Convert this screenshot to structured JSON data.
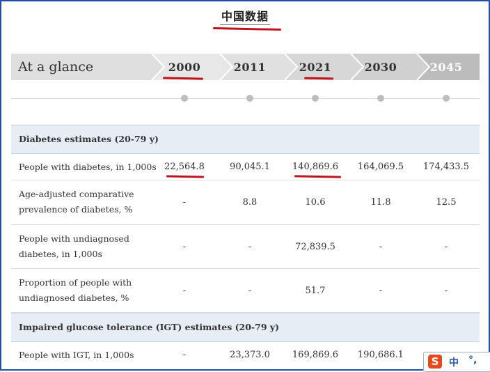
{
  "page": {
    "title": "中国数据"
  },
  "glance": {
    "label": "At a glance",
    "years": [
      "2000",
      "2011",
      "2021",
      "2030",
      "2045"
    ]
  },
  "sections": [
    {
      "title": "Diabetes estimates (20-79 y)",
      "rows": [
        {
          "label_lines": [
            "People with diabetes, in 1,000s"
          ],
          "values": [
            "22,564.8",
            "90,045.1",
            "140,869.6",
            "164,069.5",
            "174,433.5"
          ]
        },
        {
          "label_lines": [
            "Age-adjusted comparative",
            "prevalence of diabetes, %"
          ],
          "values": [
            "-",
            "8.8",
            "10.6",
            "11.8",
            "12.5"
          ]
        },
        {
          "label_lines": [
            "People with undiagnosed",
            "diabetes, in 1,000s"
          ],
          "values": [
            "-",
            "-",
            "72,839.5",
            "-",
            "-"
          ]
        },
        {
          "label_lines": [
            "Proportion of people with",
            "undiagnosed diabetes, %"
          ],
          "values": [
            "-",
            "-",
            "51.7",
            "-",
            "-"
          ]
        }
      ]
    },
    {
      "title": "Impaired glucose tolerance (IGT) estimates (20-79 y)",
      "rows": [
        {
          "label_lines": [
            "People with IGT, in 1,000s"
          ],
          "values": [
            "-",
            "23,373.0",
            "169,869.6",
            "190,686.1",
            ""
          ]
        }
      ]
    }
  ],
  "ime": {
    "logo": "S",
    "mode": "中",
    "punct": "°,"
  },
  "colors": {
    "annotation_red": "#c0141c",
    "section_bg": "#e6edf5",
    "frame_border": "#1f4fa8"
  }
}
